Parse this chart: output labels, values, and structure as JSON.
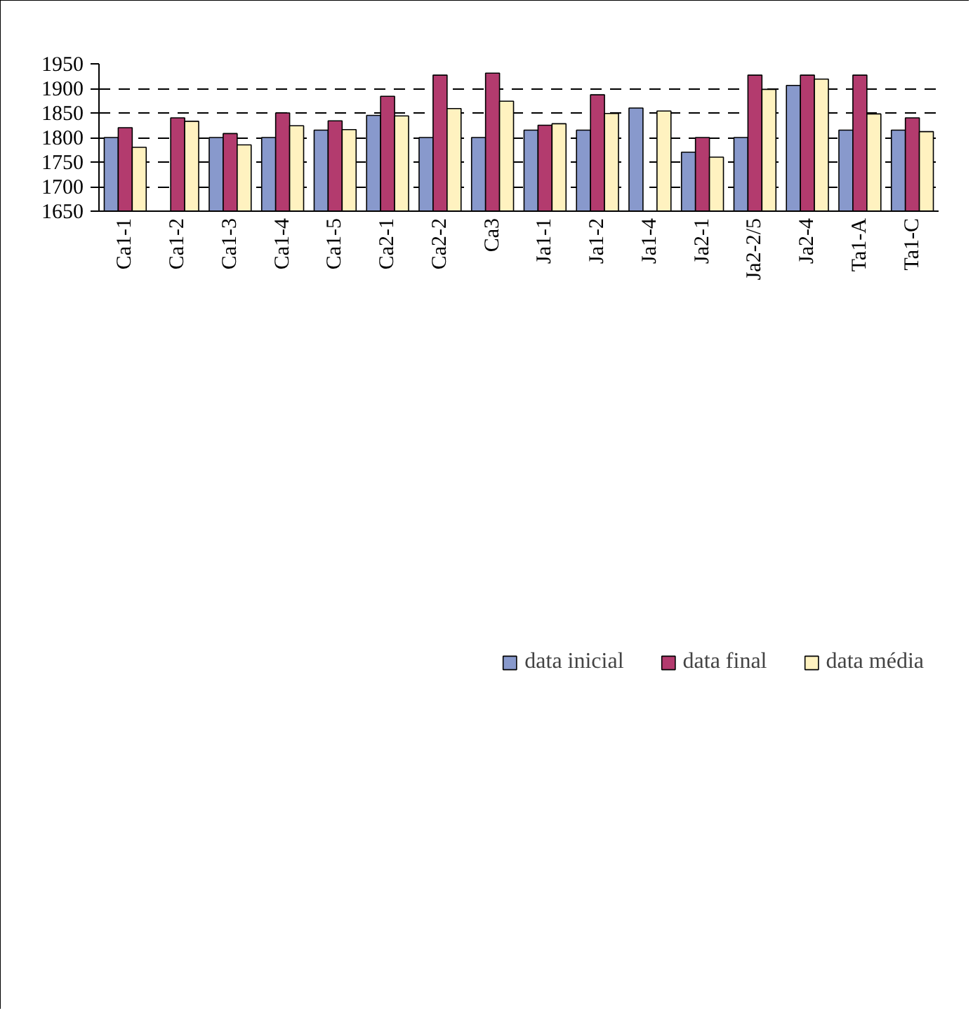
{
  "chart_data": {
    "type": "bar",
    "categories": [
      "Ca1-1",
      "Ca1-2",
      "Ca1-3",
      "Ca1-4",
      "Ca1-5",
      "Ca2-1",
      "Ca2-2",
      "Ca3",
      "Ja1-1",
      "Ja1-2",
      "Ja1-4",
      "Ja2-1",
      "Ja2-2/5",
      "Ja2-4",
      "Ta1-A",
      "Ta1-C"
    ],
    "series": [
      {
        "name": "data inicial",
        "color": "#8899cc",
        "values": [
          1800,
          null,
          1800,
          1800,
          1815,
          1845,
          1800,
          1800,
          1815,
          1815,
          1860,
          1770,
          1800,
          1906,
          1815,
          1815
        ]
      },
      {
        "name": "data final",
        "color": "#b33b6e",
        "values": [
          1820,
          1840,
          1808,
          1850,
          1834,
          1884,
          1927,
          1931,
          1825,
          1887,
          null,
          1800,
          1927,
          1927,
          1927,
          1840
        ]
      },
      {
        "name": "data média",
        "color": "#fff2c0",
        "values": [
          1780,
          1833,
          1785,
          1824,
          1816,
          1844,
          1859,
          1874,
          1828,
          1849,
          1854,
          1760,
          1898,
          1919,
          1848,
          1812
        ]
      }
    ],
    "ylim": [
      1650,
      1950
    ],
    "yticks": [
      1650,
      1700,
      1750,
      1800,
      1850,
      1900,
      1950
    ],
    "grid": "y",
    "line_style": "dashed",
    "legend": "bottom"
  }
}
